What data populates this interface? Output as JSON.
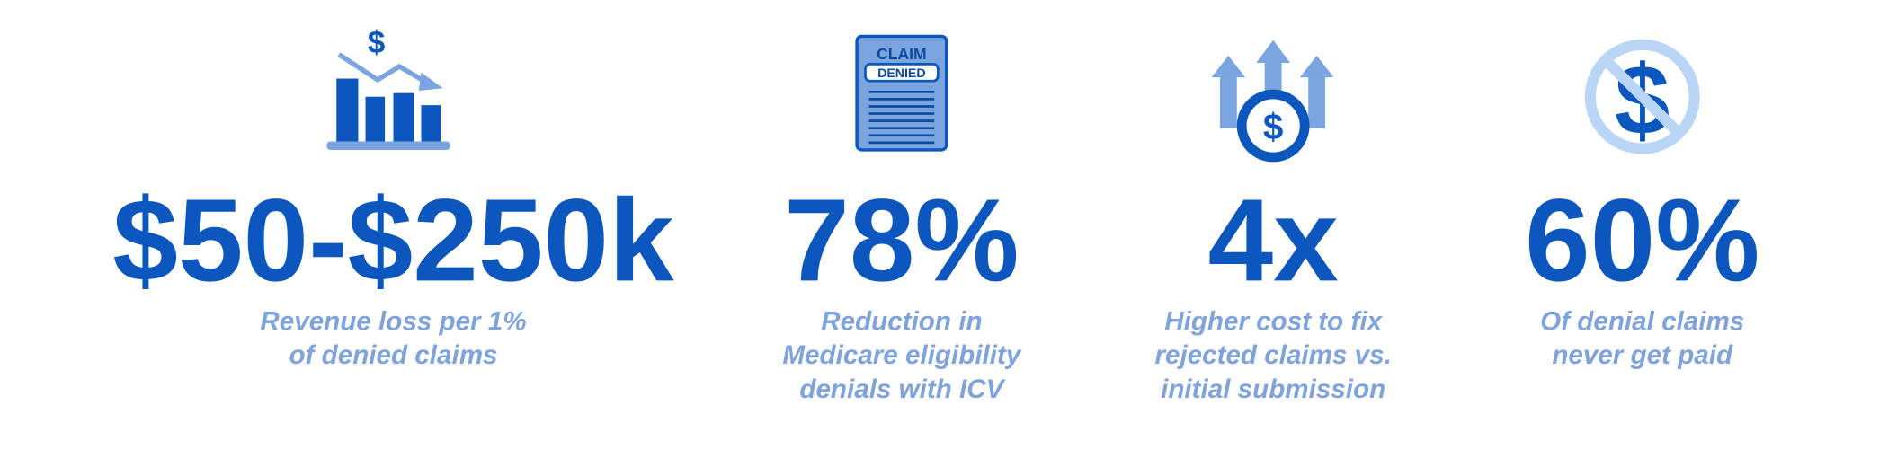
{
  "stats": [
    {
      "icon_text": [
        "$"
      ],
      "value": "$50-$250k",
      "description": [
        "Revenue loss per 1%",
        "of denied claims"
      ]
    },
    {
      "icon_text": [
        "CLAIM",
        "DENIED"
      ],
      "value": "78%",
      "description": [
        "Reduction in",
        "Medicare eligibility",
        "denials with ICV"
      ]
    },
    {
      "icon_text": [
        "$"
      ],
      "value": "4x",
      "description": [
        "Higher cost to fix",
        "rejected claims vs.",
        "initial submission"
      ]
    },
    {
      "icon_text": [
        "$"
      ],
      "value": "60%",
      "description": [
        "Of denial claims",
        "never get paid"
      ]
    }
  ]
}
